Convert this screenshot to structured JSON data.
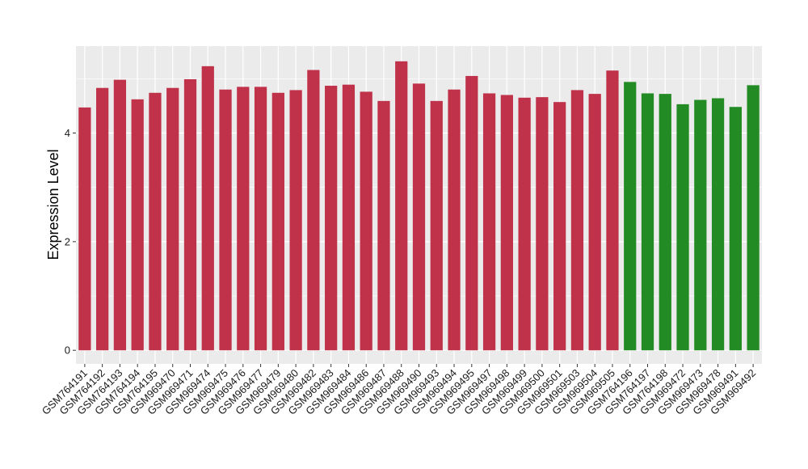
{
  "chart_data": {
    "type": "bar",
    "title": "",
    "xlabel": "",
    "ylabel": "Expression Level",
    "ylim": [
      -0.25,
      5.6
    ],
    "yticks": [
      0,
      2,
      4
    ],
    "grid": true,
    "legend": "none",
    "categories": [
      "GSM764191",
      "GSM764192",
      "GSM764193",
      "GSM764194",
      "GSM764195",
      "GSM969470",
      "GSM969471",
      "GSM969474",
      "GSM969475",
      "GSM969476",
      "GSM969477",
      "GSM969479",
      "GSM969480",
      "GSM969482",
      "GSM969483",
      "GSM969484",
      "GSM969486",
      "GSM969487",
      "GSM969488",
      "GSM969490",
      "GSM969493",
      "GSM969494",
      "GSM969495",
      "GSM969497",
      "GSM969498",
      "GSM969499",
      "GSM969500",
      "GSM969501",
      "GSM969503",
      "GSM969504",
      "GSM969505",
      "GSM764196",
      "GSM764197",
      "GSM764198",
      "GSM969472",
      "GSM969473",
      "GSM969478",
      "GSM969491",
      "GSM969492"
    ],
    "values": [
      4.47,
      4.83,
      4.98,
      4.62,
      4.74,
      4.83,
      4.99,
      5.23,
      4.8,
      4.85,
      4.85,
      4.74,
      4.79,
      5.16,
      4.87,
      4.89,
      4.76,
      4.59,
      5.32,
      4.91,
      4.59,
      4.8,
      5.05,
      4.73,
      4.7,
      4.65,
      4.66,
      4.57,
      4.79,
      4.72,
      5.15,
      4.94,
      4.73,
      4.72,
      4.53,
      4.61,
      4.64,
      4.48,
      4.88
    ],
    "groups": [
      "red",
      "red",
      "red",
      "red",
      "red",
      "red",
      "red",
      "red",
      "red",
      "red",
      "red",
      "red",
      "red",
      "red",
      "red",
      "red",
      "red",
      "red",
      "red",
      "red",
      "red",
      "red",
      "red",
      "red",
      "red",
      "red",
      "red",
      "red",
      "red",
      "red",
      "red",
      "green",
      "green",
      "green",
      "green",
      "green",
      "green",
      "green",
      "green"
    ],
    "colors": {
      "red": "#c0314a",
      "green": "#238b24",
      "panel": "#ebebeb",
      "grid": "#ffffff"
    }
  }
}
